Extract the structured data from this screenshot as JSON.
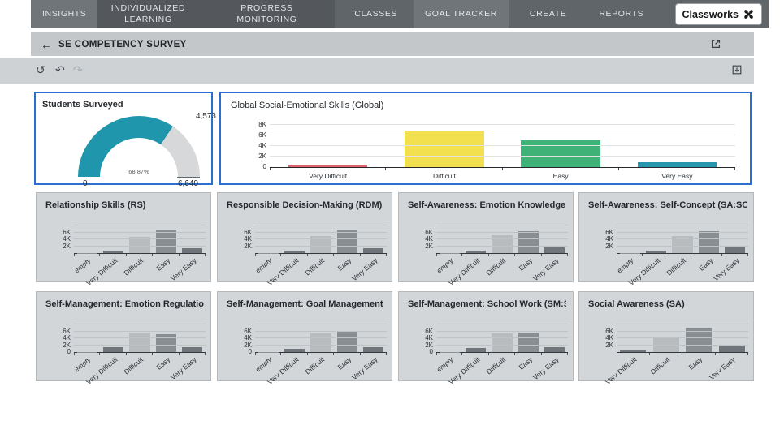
{
  "app": {
    "logo_label": "Classworks"
  },
  "nav": {
    "tabs": [
      {
        "label": "INSIGHTS"
      },
      {
        "label": "INDIVIDUALIZED LEARNING"
      },
      {
        "label": "PROGRESS MONITORING"
      },
      {
        "label": "CLASSES"
      },
      {
        "label": "GOAL TRACKER"
      },
      {
        "label": "CREATE"
      },
      {
        "label": "REPORTS"
      }
    ]
  },
  "header": {
    "back_icon": "←",
    "title": "SE COMPETENCY SURVEY"
  },
  "toolbar": {
    "refresh_icon": "↺",
    "undo_icon": "↶",
    "redo_icon": "↷"
  },
  "colors": {
    "selected_card_border": "#2d6fce",
    "nav_base": "#606569",
    "nav_dark": "#54585c",
    "nav_highlight": "#70757a",
    "gauge_fill": "#1f96ac",
    "gauge_track": "#d7d8d9",
    "bar_red": "#e0606e",
    "bar_yellow": "#f2e04e",
    "bar_green": "#3eb277",
    "bar_teal": "#2596ad"
  },
  "chart_data": [
    {
      "type": "gauge",
      "title": "Students Surveyed",
      "value": 4573,
      "min": 0,
      "max": 6640,
      "percent": 68.87,
      "labels": {
        "value": "4,573",
        "min": "0",
        "max": "6,640",
        "percent": "68.87%"
      },
      "fill_color": "#1f96ac",
      "track_color": "#d7d8d9"
    },
    {
      "type": "bar",
      "title": "Global Social-Emotional Skills (Global)",
      "categories": [
        "Very Difficult",
        "Difficult",
        "Easy",
        "Very Easy"
      ],
      "values": [
        500,
        6900,
        5100,
        1000
      ],
      "colors": [
        "#e0606e",
        "#f2e04e",
        "#3eb277",
        "#2596ad"
      ],
      "ylim": [
        0,
        8000
      ],
      "gridlines": [
        2000,
        4000,
        6000,
        8000
      ],
      "yticks": [
        {
          "v": 0,
          "label": "0"
        },
        {
          "v": 2000,
          "label": "2K"
        },
        {
          "v": 4000,
          "label": "4K"
        },
        {
          "v": 6000,
          "label": "6K"
        },
        {
          "v": 8000,
          "label": "8K"
        }
      ],
      "legend": "none"
    },
    {
      "type": "bar",
      "title": "Relationship Skills (RS)",
      "categories": [
        "empty",
        "Very Difficult",
        "Difficult",
        "Easy",
        "Very Easy"
      ],
      "italic_categories": [
        "empty"
      ],
      "values": [
        60,
        600,
        4600,
        6600,
        1500
      ],
      "colors": [
        "#8d9296",
        "#6f757a",
        "#b9bcbf",
        "#898e92",
        "#6f757a"
      ],
      "ylim": [
        0,
        8000
      ],
      "gridlines": [
        2000,
        4000,
        6000,
        8000
      ],
      "yticks": [
        {
          "v": 2000,
          "label": "2K"
        },
        {
          "v": 4000,
          "label": "4K"
        },
        {
          "v": 6000,
          "label": "6K"
        }
      ]
    },
    {
      "type": "bar",
      "title": "Responsible Decision-Making (RDM)",
      "categories": [
        "empty",
        "Very Difficult",
        "Difficult",
        "Easy",
        "Very Easy"
      ],
      "italic_categories": [
        "empty"
      ],
      "values": [
        60,
        600,
        4900,
        6600,
        1500
      ],
      "colors": [
        "#8d9296",
        "#6f757a",
        "#b9bcbf",
        "#898e92",
        "#6f757a"
      ],
      "ylim": [
        0,
        8000
      ],
      "gridlines": [
        2000,
        4000,
        6000,
        8000
      ],
      "yticks": [
        {
          "v": 2000,
          "label": "2K"
        },
        {
          "v": 4000,
          "label": "4K"
        },
        {
          "v": 6000,
          "label": "6K"
        }
      ]
    },
    {
      "type": "bar",
      "title": "Self-Awareness: Emotion Knowledge (S...",
      "categories": [
        "empty",
        "Very Difficult",
        "Difficult",
        "Easy",
        "Very Easy"
      ],
      "italic_categories": [
        "empty"
      ],
      "values": [
        60,
        800,
        5200,
        6300,
        1600
      ],
      "colors": [
        "#8d9296",
        "#6f757a",
        "#b9bcbf",
        "#898e92",
        "#6f757a"
      ],
      "ylim": [
        0,
        8000
      ],
      "gridlines": [
        2000,
        4000,
        6000,
        8000
      ],
      "yticks": [
        {
          "v": 2000,
          "label": "2K"
        },
        {
          "v": 4000,
          "label": "4K"
        },
        {
          "v": 6000,
          "label": "6K"
        }
      ]
    },
    {
      "type": "bar",
      "title": "Self-Awareness: Self-Concept (SA:SC)",
      "categories": [
        "empty",
        "Very Difficult",
        "Difficult",
        "Easy",
        "Very Easy"
      ],
      "italic_categories": [
        "empty"
      ],
      "values": [
        60,
        700,
        4900,
        6400,
        1800
      ],
      "colors": [
        "#8d9296",
        "#6f757a",
        "#b9bcbf",
        "#898e92",
        "#6f757a"
      ],
      "ylim": [
        0,
        8000
      ],
      "gridlines": [
        2000,
        4000,
        6000,
        8000
      ],
      "yticks": [
        {
          "v": 2000,
          "label": "2K"
        },
        {
          "v": 4000,
          "label": "4K"
        },
        {
          "v": 6000,
          "label": "6K"
        }
      ]
    },
    {
      "type": "bar",
      "title": "Self-Management: Emotion Regulation (...",
      "categories": [
        "empty",
        "Very Difficult",
        "Difficult",
        "Easy",
        "Very Easy"
      ],
      "italic_categories": [
        "empty"
      ],
      "values": [
        60,
        1500,
        5600,
        5100,
        1500
      ],
      "colors": [
        "#8d9296",
        "#6f757a",
        "#b9bcbf",
        "#898e92",
        "#6f757a"
      ],
      "ylim": [
        0,
        8000
      ],
      "gridlines": [
        2000,
        4000,
        6000,
        8000
      ],
      "yticks": [
        {
          "v": 0,
          "label": "0"
        },
        {
          "v": 2000,
          "label": "2K"
        },
        {
          "v": 4000,
          "label": "4K"
        },
        {
          "v": 6000,
          "label": "6K"
        }
      ]
    },
    {
      "type": "bar",
      "title": "Self-Management: Goal Management (S...",
      "categories": [
        "empty",
        "Very Difficult",
        "Difficult",
        "Easy",
        "Very Easy"
      ],
      "italic_categories": [
        "empty"
      ],
      "values": [
        60,
        900,
        5300,
        5800,
        1400
      ],
      "colors": [
        "#8d9296",
        "#6f757a",
        "#b9bcbf",
        "#898e92",
        "#6f757a"
      ],
      "ylim": [
        0,
        8000
      ],
      "gridlines": [
        2000,
        4000,
        6000,
        8000
      ],
      "yticks": [
        {
          "v": 0,
          "label": "0"
        },
        {
          "v": 2000,
          "label": "2K"
        },
        {
          "v": 4000,
          "label": "4K"
        },
        {
          "v": 6000,
          "label": "6K"
        }
      ]
    },
    {
      "type": "bar",
      "title": "Self-Management: School Work (SM:SW)",
      "categories": [
        "empty",
        "Very Difficult",
        "Difficult",
        "Easy",
        "Very Easy"
      ],
      "italic_categories": [
        "empty"
      ],
      "values": [
        60,
        1100,
        5500,
        5700,
        1500
      ],
      "colors": [
        "#8d9296",
        "#6f757a",
        "#b9bcbf",
        "#898e92",
        "#6f757a"
      ],
      "ylim": [
        0,
        8000
      ],
      "gridlines": [
        2000,
        4000,
        6000,
        8000
      ],
      "yticks": [
        {
          "v": 0,
          "label": "0"
        },
        {
          "v": 2000,
          "label": "2K"
        },
        {
          "v": 4000,
          "label": "4K"
        },
        {
          "v": 6000,
          "label": "6K"
        }
      ]
    },
    {
      "type": "bar",
      "title": "Social Awareness (SA)",
      "categories": [
        "Very Difficult",
        "Difficult",
        "Easy",
        "Very Easy"
      ],
      "italic_categories": [],
      "values": [
        400,
        4300,
        6900,
        1800
      ],
      "colors": [
        "#6f757a",
        "#b9bcbf",
        "#898e92",
        "#6f757a"
      ],
      "ylim": [
        0,
        8000
      ],
      "gridlines": [
        2000,
        4000,
        6000,
        8000
      ],
      "yticks": [
        {
          "v": 2000,
          "label": "2K"
        },
        {
          "v": 4000,
          "label": "4K"
        },
        {
          "v": 6000,
          "label": "6K"
        }
      ]
    }
  ]
}
